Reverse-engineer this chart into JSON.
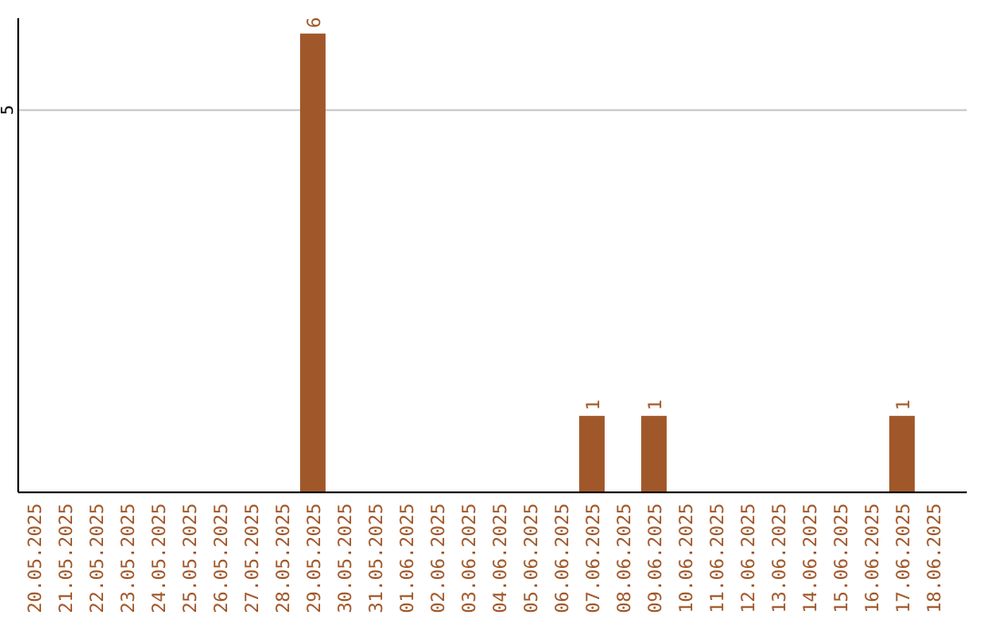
{
  "chart_data": {
    "type": "bar",
    "categories": [
      "20.05.2025",
      "21.05.2025",
      "22.05.2025",
      "23.05.2025",
      "24.05.2025",
      "25.05.2025",
      "26.05.2025",
      "27.05.2025",
      "28.05.2025",
      "29.05.2025",
      "30.05.2025",
      "31.05.2025",
      "01.06.2025",
      "02.06.2025",
      "03.06.2025",
      "04.06.2025",
      "05.06.2025",
      "06.06.2025",
      "07.06.2025",
      "08.06.2025",
      "09.06.2025",
      "10.06.2025",
      "11.06.2025",
      "12.06.2025",
      "13.06.2025",
      "14.06.2025",
      "15.06.2025",
      "16.06.2025",
      "17.06.2025",
      "18.06.2025"
    ],
    "values": [
      0,
      0,
      0,
      0,
      0,
      0,
      0,
      0,
      0,
      6,
      0,
      0,
      0,
      0,
      0,
      0,
      0,
      0,
      1,
      0,
      1,
      0,
      0,
      0,
      0,
      0,
      0,
      0,
      1,
      0
    ],
    "value_labels": [
      null,
      null,
      null,
      null,
      null,
      null,
      null,
      null,
      null,
      "6",
      null,
      null,
      null,
      null,
      null,
      null,
      null,
      null,
      "1",
      null,
      "1",
      null,
      null,
      null,
      null,
      null,
      null,
      null,
      "1",
      null
    ],
    "color": "#a0582a",
    "ylim": [
      0,
      6.2
    ],
    "yticks": [
      5
    ],
    "grid": "y"
  }
}
